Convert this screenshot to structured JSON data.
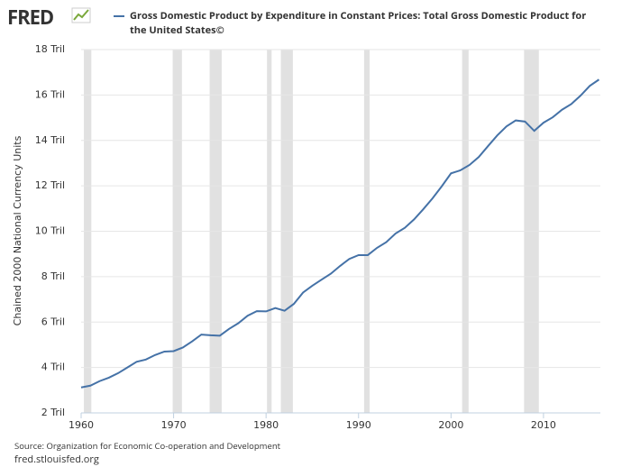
{
  "logo": "FRED",
  "chart_data": {
    "type": "line",
    "legend_text": "Gross Domestic Product by Expenditure in Constant Prices: Total Gross Domestic Product for the United States©",
    "y_label": "Chained 2000 National Currency Units",
    "source": "Source: Organization for Economic Co-operation and Development",
    "site": "fred.stlouisfed.org",
    "x": [
      1960,
      1961,
      1962,
      1963,
      1964,
      1965,
      1966,
      1967,
      1968,
      1969,
      1970,
      1971,
      1972,
      1973,
      1974,
      1975,
      1976,
      1977,
      1978,
      1979,
      1980,
      1981,
      1982,
      1983,
      1984,
      1985,
      1986,
      1987,
      1988,
      1989,
      1990,
      1991,
      1992,
      1993,
      1994,
      1995,
      1996,
      1997,
      1998,
      1999,
      2000,
      2001,
      2002,
      2003,
      2004,
      2005,
      2006,
      2007,
      2008,
      2009,
      2010,
      2011,
      2012,
      2013,
      2014,
      2015,
      2016
    ],
    "series": [
      {
        "color": "#4572a7",
        "values": [
          3.12,
          3.2,
          3.4,
          3.55,
          3.75,
          4.0,
          4.25,
          4.35,
          4.55,
          4.7,
          4.72,
          4.88,
          5.15,
          5.45,
          5.42,
          5.4,
          5.7,
          5.95,
          6.28,
          6.48,
          6.47,
          6.62,
          6.5,
          6.8,
          7.3,
          7.6,
          7.87,
          8.13,
          8.47,
          8.78,
          8.95,
          8.95,
          9.27,
          9.52,
          9.9,
          10.15,
          10.52,
          10.97,
          11.45,
          11.98,
          12.55,
          12.68,
          12.92,
          13.27,
          13.75,
          14.22,
          14.62,
          14.88,
          14.83,
          14.42,
          14.78,
          15.02,
          15.35,
          15.6,
          15.97,
          16.4,
          16.68
        ]
      }
    ],
    "recessions": [
      [
        1960.3,
        1961.1
      ],
      [
        1969.9,
        1970.9
      ],
      [
        1973.9,
        1975.2
      ],
      [
        1980.1,
        1980.6
      ],
      [
        1981.6,
        1982.9
      ],
      [
        1990.6,
        1991.2
      ],
      [
        2001.2,
        2001.9
      ],
      [
        2007.9,
        2009.5
      ]
    ],
    "recession_color": "#e1e1e1",
    "xlim": [
      1960,
      2016.15
    ],
    "xticks": [
      1960,
      1970,
      1980,
      1990,
      2000,
      2010
    ],
    "ylim": [
      2,
      18
    ],
    "yticks": [
      {
        "value": 2,
        "label": "2 Tril"
      },
      {
        "value": 4,
        "label": "4 Tril"
      },
      {
        "value": 6,
        "label": "6 Tril"
      },
      {
        "value": 8,
        "label": "8 Tril"
      },
      {
        "value": 10,
        "label": "10 Tril"
      },
      {
        "value": 12,
        "label": "12 Tril"
      },
      {
        "value": 14,
        "label": "14 Tril"
      },
      {
        "value": 16,
        "label": "16 Tril"
      },
      {
        "value": 18,
        "label": "18 Tril"
      }
    ],
    "grid": true
  }
}
